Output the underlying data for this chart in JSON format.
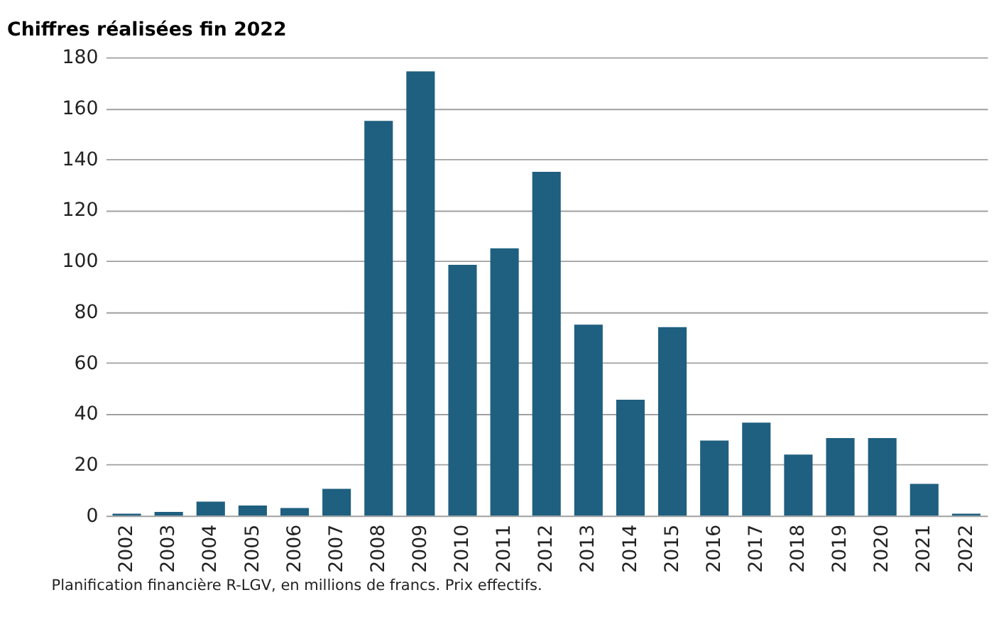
{
  "chart_data": {
    "type": "bar",
    "title": "Chiffres réalisées fin 2022",
    "categories": [
      "2002",
      "2003",
      "2004",
      "2005",
      "2006",
      "2007",
      "2008",
      "2009",
      "2010",
      "2011",
      "2012",
      "2013",
      "2014",
      "2015",
      "2016",
      "2017",
      "2018",
      "2019",
      "2020",
      "2021",
      "2022"
    ],
    "values": [
      0.8,
      1.5,
      5.5,
      4,
      3,
      10.5,
      155,
      174.5,
      98.5,
      105,
      135,
      75,
      45.5,
      74,
      29.5,
      36.5,
      24,
      30.5,
      30.5,
      12.5,
      0.8
    ],
    "color": "#1f5f7f",
    "ylim": [
      0,
      180
    ],
    "yticks": [
      0,
      20,
      40,
      60,
      80,
      100,
      120,
      140,
      160,
      180
    ],
    "grid": "y",
    "annotations": [
      "Planification financière R-LGV, en millions de francs. Prix effectifs."
    ]
  }
}
